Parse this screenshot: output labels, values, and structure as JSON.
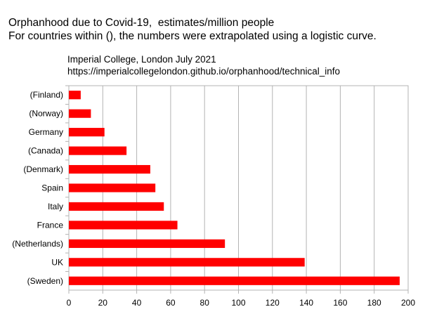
{
  "chart_data": {
    "type": "bar",
    "orientation": "horizontal",
    "title": "Orphanhood due to Covid-19,  estimates/million people",
    "subtitle": "For countries within (), the numbers were extrapolated using a logistic curve.",
    "source_line1": "Imperial College, London July 2021",
    "source_line2": "https://imperialcollegelondon.github.io/orphanhood/technical_info",
    "categories": [
      "(Finland)",
      "(Norway)",
      "Germany",
      "(Canada)",
      "(Denmark)",
      "Spain",
      "Italy",
      "France",
      "(Netherlands)",
      "UK",
      "(Sweden)"
    ],
    "values": [
      7,
      13,
      21,
      34,
      48,
      51,
      56,
      64,
      92,
      139,
      195
    ],
    "xlim": [
      0,
      200
    ],
    "xticks": [
      "0",
      "20",
      "40",
      "60",
      "80",
      "100",
      "120",
      "140",
      "160",
      "180",
      "200"
    ],
    "grid": true,
    "bar_color": "#ff0000",
    "xlabel": "",
    "ylabel": ""
  }
}
